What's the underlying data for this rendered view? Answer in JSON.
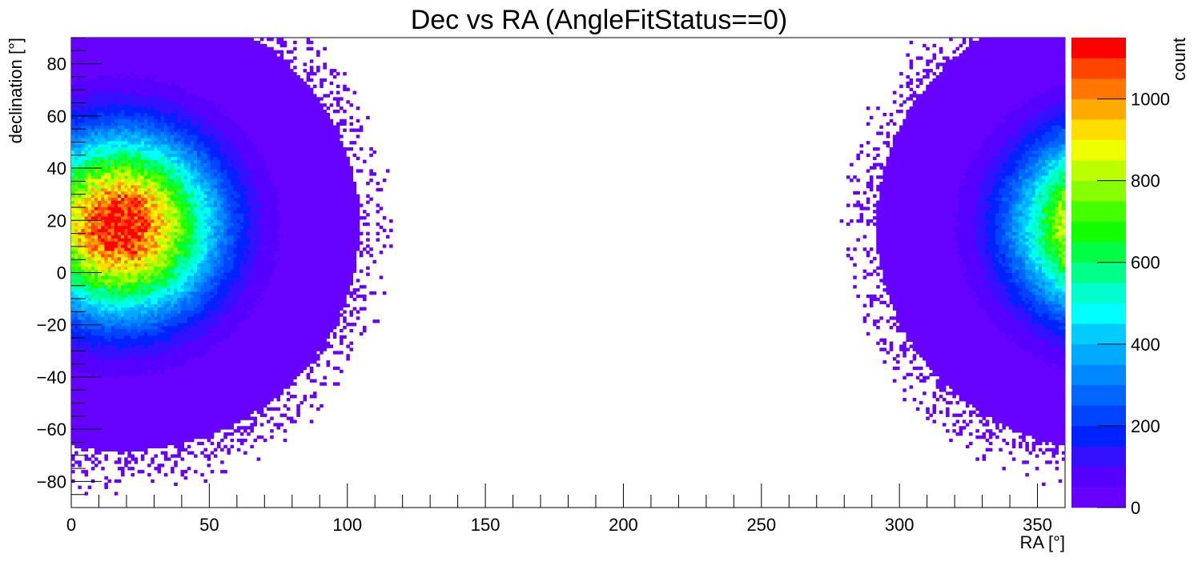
{
  "chart_data": {
    "type": "heatmap",
    "title": "Dec vs RA (AngleFitStatus==0)",
    "xlabel": "RA [°]",
    "ylabel": "declination [°]",
    "zlabel": "count",
    "xlim": [
      0,
      360
    ],
    "ylim": [
      -90,
      90
    ],
    "zlim": [
      0,
      1150
    ],
    "x_ticks": [
      0,
      50,
      100,
      150,
      200,
      250,
      300,
      350
    ],
    "y_ticks": [
      -80,
      -60,
      -40,
      -20,
      0,
      20,
      40,
      60,
      80
    ],
    "z_ticks": [
      0,
      200,
      400,
      600,
      800,
      1000
    ],
    "bin_size_deg": [
      1.2,
      1.2
    ],
    "grid": false,
    "colorbar": "right",
    "peak": {
      "ra": 18,
      "dec": 18,
      "count": 1150
    },
    "palette": [
      "#6600ff",
      "#5500ff",
      "#3311ff",
      "#0022ff",
      "#0044ff",
      "#0066ff",
      "#0088ff",
      "#00aaff",
      "#00ccff",
      "#00ffff",
      "#00ffcc",
      "#00ff88",
      "#00ff44",
      "#11ff00",
      "#44ff00",
      "#88ff00",
      "#bbff00",
      "#eeff00",
      "#ffdd00",
      "#ffaa00",
      "#ff7700",
      "#ff4400",
      "#ff0000"
    ],
    "ticks": {
      "x": [
        "0",
        "50",
        "100",
        "150",
        "200",
        "250",
        "300",
        "350"
      ],
      "y": [
        "−80",
        "−60",
        "−40",
        "−20",
        "0",
        "20",
        "40",
        "60",
        "80"
      ],
      "z": [
        "0",
        "200",
        "400",
        "600",
        "800",
        "1000"
      ]
    }
  }
}
